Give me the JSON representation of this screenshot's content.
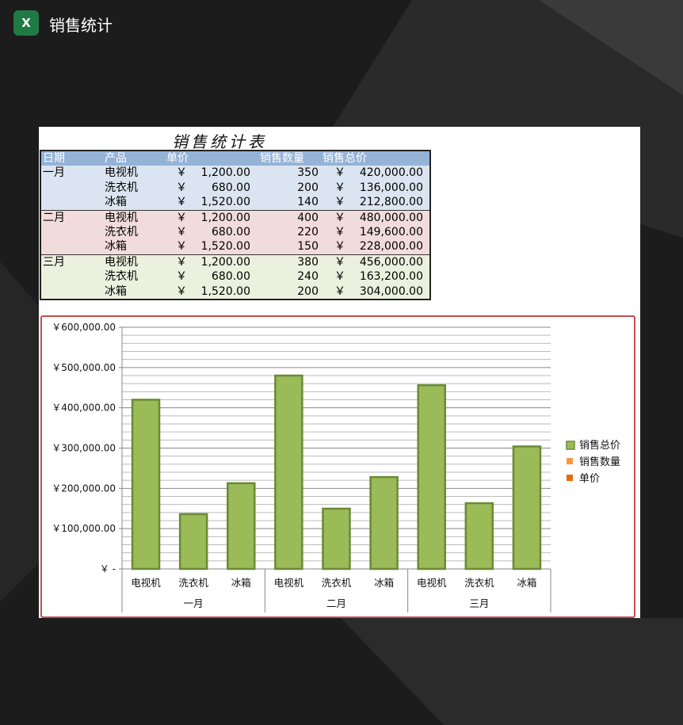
{
  "app": {
    "title": "销售统计",
    "icon": "excel-icon"
  },
  "sheet": {
    "title": "销售统计表",
    "headers": [
      "日期",
      "产品",
      "单价",
      "销售数量",
      "销售总价"
    ],
    "currency": "￥",
    "groups": [
      {
        "month": "一月",
        "rows": [
          [
            "电视机",
            "1,200.00",
            "350",
            "420,000.00"
          ],
          [
            "洗衣机",
            "680.00",
            "200",
            "136,000.00"
          ],
          [
            "冰箱",
            "1,520.00",
            "140",
            "212,800.00"
          ]
        ]
      },
      {
        "month": "二月",
        "rows": [
          [
            "电视机",
            "1,200.00",
            "400",
            "480,000.00"
          ],
          [
            "洗衣机",
            "680.00",
            "220",
            "149,600.00"
          ],
          [
            "冰箱",
            "1,520.00",
            "150",
            "228,000.00"
          ]
        ]
      },
      {
        "month": "三月",
        "rows": [
          [
            "电视机",
            "1,200.00",
            "380",
            "456,000.00"
          ],
          [
            "洗衣机",
            "680.00",
            "240",
            "163,200.00"
          ],
          [
            "冰箱",
            "1,520.00",
            "200",
            "304,000.00"
          ]
        ]
      }
    ]
  },
  "chart_data": {
    "type": "bar",
    "categories": [
      "电视机",
      "洗衣机",
      "冰箱",
      "电视机",
      "洗衣机",
      "冰箱",
      "电视机",
      "洗衣机",
      "冰箱"
    ],
    "groups": [
      "一月",
      "二月",
      "三月"
    ],
    "series": [
      {
        "name": "销售总价",
        "values": [
          420000,
          136000,
          212800,
          480000,
          149600,
          228000,
          456000,
          163200,
          304000
        ],
        "color": "#9bbb59"
      }
    ],
    "legend": [
      {
        "name": "销售总价",
        "color": "#9bbb59"
      },
      {
        "name": "销售数量",
        "color": "#f79646"
      },
      {
        "name": "单价",
        "color": "#e46c0a"
      }
    ],
    "ylim": [
      0,
      600000
    ],
    "yticks": [
      "￥ -",
      "￥100,000.00",
      "￥200,000.00",
      "￥300,000.00",
      "￥400,000.00",
      "￥500,000.00",
      "￥600,000.00"
    ],
    "grid": true,
    "legend_position": "right"
  }
}
